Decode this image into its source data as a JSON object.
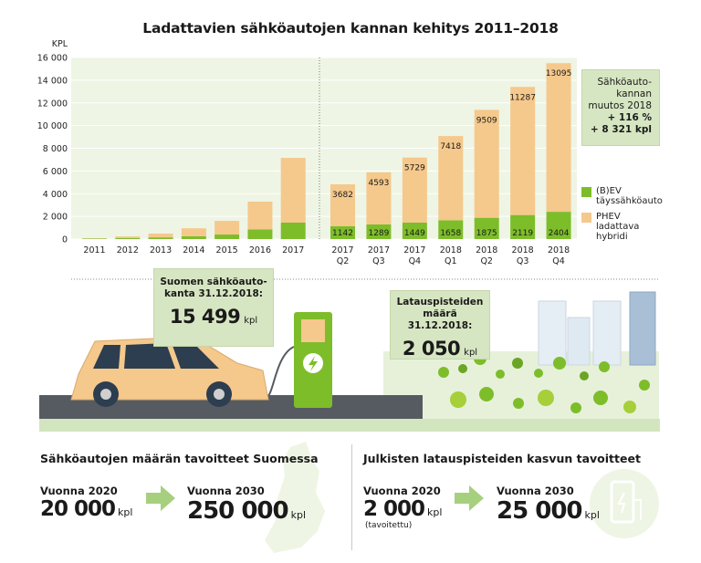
{
  "title": "Ladattavien sähköautojen kannan kehitys 2011–2018",
  "colors": {
    "bev": "#7dbd2a",
    "phev": "#f5c88c",
    "callout_bg": "#d7e6c2",
    "plot_bg": "#eef5e4",
    "arrow": "#a6cf7e"
  },
  "chart_data": {
    "type": "bar",
    "stacked": true,
    "ylabel": "KPL",
    "ylim": [
      0,
      16000
    ],
    "yticks": [
      0,
      2000,
      4000,
      6000,
      8000,
      10000,
      12000,
      14000,
      16000
    ],
    "ytick_labels": [
      "0",
      "2 000",
      "4 000",
      "6 000",
      "8 000",
      "10 000",
      "12 000",
      "14 000",
      "16 000"
    ],
    "categories": [
      "2011",
      "2012",
      "2013",
      "2014",
      "2015",
      "2016",
      "2017",
      "2017 Q2",
      "2017 Q3",
      "2017 Q4",
      "2018 Q1",
      "2018 Q2",
      "2018 Q3",
      "2018 Q4"
    ],
    "category_labels": [
      [
        "2011"
      ],
      [
        "2012"
      ],
      [
        "2013"
      ],
      [
        "2014"
      ],
      [
        "2015"
      ],
      [
        "2016"
      ],
      [
        "2017"
      ],
      [
        "2017",
        "Q2"
      ],
      [
        "2017",
        "Q3"
      ],
      [
        "2017",
        "Q4"
      ],
      [
        "2018",
        "Q1"
      ],
      [
        "2018",
        "Q2"
      ],
      [
        "2018",
        "Q3"
      ],
      [
        "2018",
        "Q4"
      ]
    ],
    "series": [
      {
        "name": "(B)EV täyssähköauto",
        "values": [
          40,
          80,
          150,
          250,
          400,
          850,
          1450,
          1142,
          1289,
          1449,
          1658,
          1875,
          2119,
          2404
        ],
        "labels": [
          "",
          "",
          "",
          "",
          "",
          "",
          "",
          "1142",
          "1289",
          "1449",
          "1658",
          "1875",
          "2119",
          "2404"
        ]
      },
      {
        "name": "PHEV ladattava hybridi",
        "values": [
          20,
          150,
          330,
          700,
          1200,
          2450,
          5700,
          3682,
          4593,
          5729,
          7418,
          9509,
          11287,
          13095
        ],
        "labels": [
          "",
          "",
          "",
          "",
          "",
          "",
          "",
          "3682",
          "4593",
          "5729",
          "7418",
          "9509",
          "11287",
          "13095"
        ]
      }
    ],
    "legend": [
      {
        "label": "(B)EV\ntäyssähköauto",
        "series": 0
      },
      {
        "label": "PHEV\nladattava\nhybridi",
        "series": 1
      }
    ],
    "legend_position": "right",
    "grid": true
  },
  "change_box": {
    "title": "Sähköauto-\nkannan\nmuutos 2018",
    "percent": "+ 116 %",
    "count": "+ 8 321 kpl"
  },
  "stock_box": {
    "label": "Suomen sähköauto-\nkanta 31.12.2018:",
    "value": "15 499",
    "unit": "kpl"
  },
  "charge_box": {
    "label": "Latauspisteiden\nmäärä 31.12.2018:",
    "value": "2 050",
    "unit": "kpl"
  },
  "targets_cars": {
    "title": "Sähköautojen määrän tavoitteet Suomessa",
    "y2020_label": "Vuonna 2020",
    "y2020_value": "20 000",
    "y2020_unit": "kpl",
    "y2030_label": "Vuonna 2030",
    "y2030_value": "250 000",
    "y2030_unit": "kpl"
  },
  "targets_charging": {
    "title": "Julkisten latauspisteiden kasvun tavoitteet",
    "y2020_label": "Vuonna 2020",
    "y2020_value": "2 000",
    "y2020_unit": "kpl",
    "y2020_note": "(tavoitettu)",
    "y2030_label": "Vuonna 2030",
    "y2030_value": "25 000",
    "y2030_unit": "kpl"
  }
}
